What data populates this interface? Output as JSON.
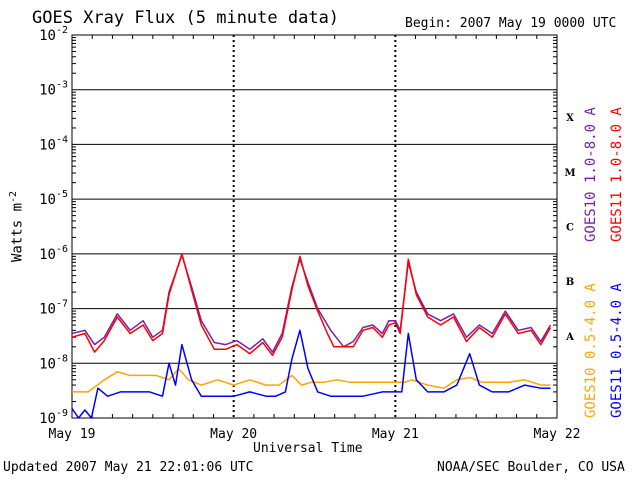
{
  "chart_data": {
    "type": "line",
    "title": "GOES Xray Flux (5 minute data)",
    "begin_label": "Begin:  2007 May 19 0000 UTC",
    "xlabel": "Universal Time",
    "ylabel": "Watts m",
    "ylabel_exp": "-2",
    "y_scale": "log",
    "ylim": [
      1e-09,
      0.01
    ],
    "y_ticks": [
      {
        "base": "10",
        "exp": "-2",
        "value": 0.01
      },
      {
        "base": "10",
        "exp": "-3",
        "value": 0.001
      },
      {
        "base": "10",
        "exp": "-4",
        "value": 0.0001
      },
      {
        "base": "10",
        "exp": "-5",
        "value": 1e-05
      },
      {
        "base": "10",
        "exp": "-6",
        "value": 1e-06
      },
      {
        "base": "10",
        "exp": "-7",
        "value": 1e-07
      },
      {
        "base": "10",
        "exp": "-8",
        "value": 1e-08
      },
      {
        "base": "10",
        "exp": "-9",
        "value": 1e-09
      }
    ],
    "xlim": [
      0,
      3
    ],
    "x_ticks": [
      {
        "label": "May 19",
        "value": 0
      },
      {
        "label": "May 20",
        "value": 1
      },
      {
        "label": "May 21",
        "value": 2
      },
      {
        "label": "May 22",
        "value": 3
      }
    ],
    "flare_classes": [
      {
        "label": "X",
        "value": 0.000316
      },
      {
        "label": "M",
        "value": 3.16e-05
      },
      {
        "label": "C",
        "value": 3.16e-06
      },
      {
        "label": "B",
        "value": 3.16e-07
      },
      {
        "label": "A",
        "value": 3.16e-08
      }
    ],
    "grid": true,
    "series": [
      {
        "name": "GOES10 1.0-8.0 A",
        "color": "#7a1fa8",
        "points": [
          [
            0,
            3.5e-08
          ],
          [
            0.08,
            4e-08
          ],
          [
            0.14,
            2.2e-08
          ],
          [
            0.2,
            3e-08
          ],
          [
            0.28,
            8e-08
          ],
          [
            0.36,
            4e-08
          ],
          [
            0.44,
            6e-08
          ],
          [
            0.5,
            3e-08
          ],
          [
            0.56,
            4e-08
          ],
          [
            0.6,
            2e-07
          ],
          [
            0.68,
            9.5e-07
          ],
          [
            0.74,
            2.5e-07
          ],
          [
            0.8,
            6e-08
          ],
          [
            0.88,
            2.4e-08
          ],
          [
            0.95,
            2.2e-08
          ],
          [
            1.02,
            2.6e-08
          ],
          [
            1.1,
            1.8e-08
          ],
          [
            1.18,
            2.8e-08
          ],
          [
            1.24,
            1.6e-08
          ],
          [
            1.3,
            3.5e-08
          ],
          [
            1.36,
            2.5e-07
          ],
          [
            1.41,
            8e-07
          ],
          [
            1.46,
            3e-07
          ],
          [
            1.52,
            1e-07
          ],
          [
            1.6,
            4e-08
          ],
          [
            1.68,
            2e-08
          ],
          [
            1.74,
            2.5e-08
          ],
          [
            1.8,
            4.5e-08
          ],
          [
            1.86,
            5e-08
          ],
          [
            1.92,
            3.5e-08
          ],
          [
            1.96,
            6e-08
          ],
          [
            2.0,
            6e-08
          ],
          [
            2.03,
            4e-08
          ],
          [
            2.08,
            7e-07
          ],
          [
            2.13,
            2e-07
          ],
          [
            2.2,
            8e-08
          ],
          [
            2.28,
            6e-08
          ],
          [
            2.36,
            8e-08
          ],
          [
            2.44,
            3e-08
          ],
          [
            2.52,
            5e-08
          ],
          [
            2.6,
            3.5e-08
          ],
          [
            2.68,
            9e-08
          ],
          [
            2.76,
            4e-08
          ],
          [
            2.84,
            4.5e-08
          ],
          [
            2.9,
            2.5e-08
          ],
          [
            2.96,
            5e-08
          ]
        ]
      },
      {
        "name": "GOES11 1.0-8.0 A",
        "color": "#ff0000",
        "points": [
          [
            0,
            3e-08
          ],
          [
            0.08,
            3.5e-08
          ],
          [
            0.14,
            1.6e-08
          ],
          [
            0.2,
            2.6e-08
          ],
          [
            0.28,
            7e-08
          ],
          [
            0.36,
            3.5e-08
          ],
          [
            0.44,
            5e-08
          ],
          [
            0.5,
            2.6e-08
          ],
          [
            0.56,
            3.5e-08
          ],
          [
            0.6,
            1.8e-07
          ],
          [
            0.68,
            1e-06
          ],
          [
            0.74,
            2.2e-07
          ],
          [
            0.8,
            5e-08
          ],
          [
            0.88,
            1.8e-08
          ],
          [
            0.95,
            1.8e-08
          ],
          [
            1.02,
            2.2e-08
          ],
          [
            1.1,
            1.5e-08
          ],
          [
            1.18,
            2.4e-08
          ],
          [
            1.24,
            1.4e-08
          ],
          [
            1.3,
            3e-08
          ],
          [
            1.36,
            2.2e-07
          ],
          [
            1.41,
            9e-07
          ],
          [
            1.46,
            2.6e-07
          ],
          [
            1.52,
            9e-08
          ],
          [
            1.58,
            3.5e-08
          ],
          [
            1.62,
            2e-08
          ],
          [
            1.74,
            2e-08
          ],
          [
            1.8,
            4e-08
          ],
          [
            1.86,
            4.5e-08
          ],
          [
            1.92,
            3e-08
          ],
          [
            1.96,
            5e-08
          ],
          [
            2.0,
            5.5e-08
          ],
          [
            2.03,
            3.5e-08
          ],
          [
            2.08,
            8e-07
          ],
          [
            2.13,
            1.8e-07
          ],
          [
            2.2,
            7e-08
          ],
          [
            2.28,
            5e-08
          ],
          [
            2.36,
            7e-08
          ],
          [
            2.44,
            2.5e-08
          ],
          [
            2.52,
            4.5e-08
          ],
          [
            2.6,
            3e-08
          ],
          [
            2.68,
            8e-08
          ],
          [
            2.76,
            3.5e-08
          ],
          [
            2.84,
            4e-08
          ],
          [
            2.9,
            2.2e-08
          ],
          [
            2.96,
            4.5e-08
          ]
        ]
      },
      {
        "name": "GOES10 0.5-4.0 A",
        "color": "#ffa500",
        "points": [
          [
            0,
            3e-09
          ],
          [
            0.1,
            3e-09
          ],
          [
            0.2,
            5e-09
          ],
          [
            0.28,
            7e-09
          ],
          [
            0.36,
            6e-09
          ],
          [
            0.44,
            6e-09
          ],
          [
            0.52,
            6e-09
          ],
          [
            0.6,
            5e-09
          ],
          [
            0.66,
            8e-09
          ],
          [
            0.72,
            5e-09
          ],
          [
            0.8,
            4e-09
          ],
          [
            0.9,
            5e-09
          ],
          [
            1.0,
            4e-09
          ],
          [
            1.1,
            5e-09
          ],
          [
            1.2,
            4e-09
          ],
          [
            1.28,
            4e-09
          ],
          [
            1.36,
            6e-09
          ],
          [
            1.42,
            4e-09
          ],
          [
            1.48,
            4.5e-09
          ],
          [
            1.56,
            4.5e-09
          ],
          [
            1.64,
            5e-09
          ],
          [
            1.72,
            4.5e-09
          ],
          [
            1.8,
            4.5e-09
          ],
          [
            1.9,
            4.5e-09
          ],
          [
            2.0,
            4.5e-09
          ],
          [
            2.06,
            4.5e-09
          ],
          [
            2.1,
            5e-09
          ],
          [
            2.2,
            4e-09
          ],
          [
            2.3,
            3.5e-09
          ],
          [
            2.38,
            5e-09
          ],
          [
            2.46,
            5.5e-09
          ],
          [
            2.54,
            4.5e-09
          ],
          [
            2.6,
            4.5e-09
          ],
          [
            2.7,
            4.5e-09
          ],
          [
            2.8,
            5e-09
          ],
          [
            2.9,
            4e-09
          ],
          [
            2.96,
            4e-09
          ]
        ]
      },
      {
        "name": "GOES11 0.5-4.0 A",
        "color": "#0000ff",
        "points": [
          [
            0,
            1.5e-09
          ],
          [
            0.04,
            1e-09
          ],
          [
            0.08,
            1.4e-09
          ],
          [
            0.12,
            1e-09
          ],
          [
            0.16,
            3.5e-09
          ],
          [
            0.22,
            2.5e-09
          ],
          [
            0.3,
            3e-09
          ],
          [
            0.4,
            3e-09
          ],
          [
            0.48,
            3e-09
          ],
          [
            0.56,
            2.5e-09
          ],
          [
            0.6,
            1e-08
          ],
          [
            0.64,
            4e-09
          ],
          [
            0.68,
            2.2e-08
          ],
          [
            0.74,
            5e-09
          ],
          [
            0.8,
            2.5e-09
          ],
          [
            0.9,
            2.5e-09
          ],
          [
            1.0,
            2.5e-09
          ],
          [
            1.1,
            3e-09
          ],
          [
            1.2,
            2.5e-09
          ],
          [
            1.26,
            2.5e-09
          ],
          [
            1.32,
            3e-09
          ],
          [
            1.36,
            1.2e-08
          ],
          [
            1.41,
            4e-08
          ],
          [
            1.46,
            8e-09
          ],
          [
            1.52,
            3e-09
          ],
          [
            1.6,
            2.5e-09
          ],
          [
            1.72,
            2.5e-09
          ],
          [
            1.8,
            2.5e-09
          ],
          [
            1.92,
            3e-09
          ],
          [
            2.0,
            3e-09
          ],
          [
            2.04,
            3e-09
          ],
          [
            2.08,
            3.5e-08
          ],
          [
            2.13,
            5e-09
          ],
          [
            2.2,
            3e-09
          ],
          [
            2.3,
            3e-09
          ],
          [
            2.38,
            4e-09
          ],
          [
            2.46,
            1.5e-08
          ],
          [
            2.52,
            4e-09
          ],
          [
            2.6,
            3e-09
          ],
          [
            2.7,
            3e-09
          ],
          [
            2.8,
            4e-09
          ],
          [
            2.9,
            3.5e-09
          ],
          [
            2.96,
            3.5e-09
          ]
        ]
      }
    ]
  },
  "footer": {
    "updated": "Updated 2007 May 21 22:01:06 UTC",
    "credit": "NOAA/SEC Boulder, CO USA"
  }
}
